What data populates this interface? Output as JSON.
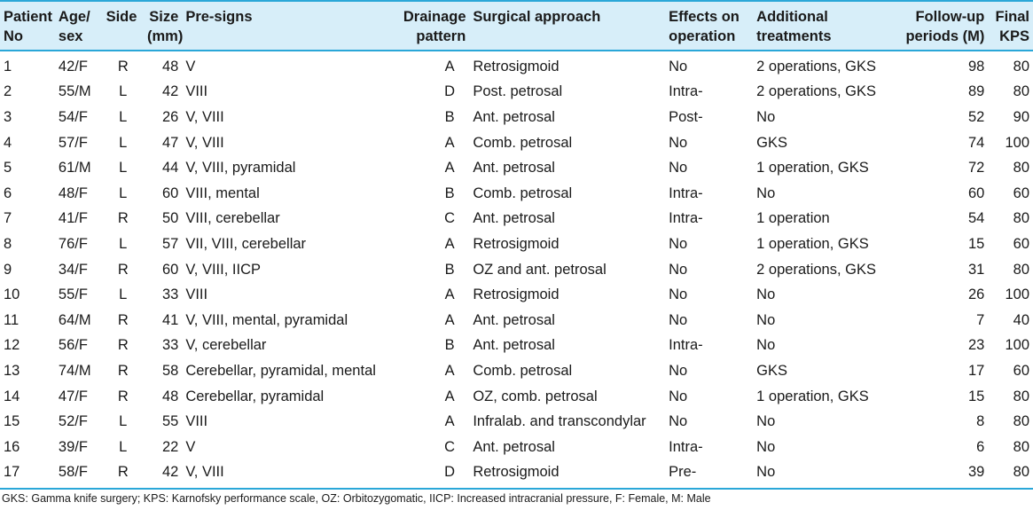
{
  "headers": [
    "Patient No",
    "Age/ sex",
    "Side",
    "Size (mm)",
    "Pre-signs",
    "Drainage pattern",
    "Surgical approach",
    "Effects on operation",
    "Additional treatments",
    "Follow-up periods (M)",
    "Final KPS"
  ],
  "rows": [
    [
      "1",
      "42/F",
      "R",
      "48",
      "V",
      "A",
      "Retrosigmoid",
      "No",
      "2 operations, GKS",
      "98",
      "80"
    ],
    [
      "2",
      "55/M",
      "L",
      "42",
      "VIII",
      "D",
      "Post. petrosal",
      "Intra-",
      "2 operations, GKS",
      "89",
      "80"
    ],
    [
      "3",
      "54/F",
      "L",
      "26",
      "V, VIII",
      "B",
      "Ant. petrosal",
      "Post-",
      "No",
      "52",
      "90"
    ],
    [
      "4",
      "57/F",
      "L",
      "47",
      "V, VIII",
      "A",
      "Comb. petrosal",
      "No",
      "GKS",
      "74",
      "100"
    ],
    [
      "5",
      "61/M",
      "L",
      "44",
      "V, VIII, pyramidal",
      "A",
      "Ant. petrosal",
      "No",
      "1 operation, GKS",
      "72",
      "80"
    ],
    [
      "6",
      "48/F",
      "L",
      "60",
      "VIII, mental",
      "B",
      "Comb. petrosal",
      "Intra-",
      "No",
      "60",
      "60"
    ],
    [
      "7",
      "41/F",
      "R",
      "50",
      "VIII, cerebellar",
      "C",
      "Ant. petrosal",
      "Intra-",
      "1 operation",
      "54",
      "80"
    ],
    [
      "8",
      "76/F",
      "L",
      "57",
      "VII, VIII, cerebellar",
      "A",
      "Retrosigmoid",
      "No",
      "1 operation, GKS",
      "15",
      "60"
    ],
    [
      "9",
      "34/F",
      "R",
      "60",
      "V, VIII, IICP",
      "B",
      "OZ and ant. petrosal",
      "No",
      "2 operations, GKS",
      "31",
      "80"
    ],
    [
      "10",
      "55/F",
      "L",
      "33",
      "VIII",
      "A",
      "Retrosigmoid",
      "No",
      "No",
      "26",
      "100"
    ],
    [
      "11",
      "64/M",
      "R",
      "41",
      "V, VIII, mental, pyramidal",
      "A",
      "Ant. petrosal",
      "No",
      "No",
      "7",
      "40"
    ],
    [
      "12",
      "56/F",
      "R",
      "33",
      "V, cerebellar",
      "B",
      "Ant. petrosal",
      "Intra-",
      "No",
      "23",
      "100"
    ],
    [
      "13",
      "74/M",
      "R",
      "58",
      "Cerebellar, pyramidal, mental",
      "A",
      "Comb. petrosal",
      "No",
      "GKS",
      "17",
      "60"
    ],
    [
      "14",
      "47/F",
      "R",
      "48",
      "Cerebellar, pyramidal",
      "A",
      "OZ, comb. petrosal",
      "No",
      "1 operation, GKS",
      "15",
      "80"
    ],
    [
      "15",
      "52/F",
      "L",
      "55",
      "VIII",
      "A",
      "Infralab. and transcondylar",
      "No",
      "No",
      "8",
      "80"
    ],
    [
      "16",
      "39/F",
      "L",
      "22",
      "V",
      "C",
      "Ant. petrosal",
      "Intra-",
      "No",
      "6",
      "80"
    ],
    [
      "17",
      "58/F",
      "R",
      "42",
      "V, VIII",
      "D",
      "Retrosigmoid",
      "Pre-",
      "No",
      "39",
      "80"
    ]
  ],
  "footnote": "GKS: Gamma knife surgery; KPS: Karnofsky performance scale, OZ: Orbitozygomatic, IICP: Increased intracranial pressure, F: Female, M: Male"
}
